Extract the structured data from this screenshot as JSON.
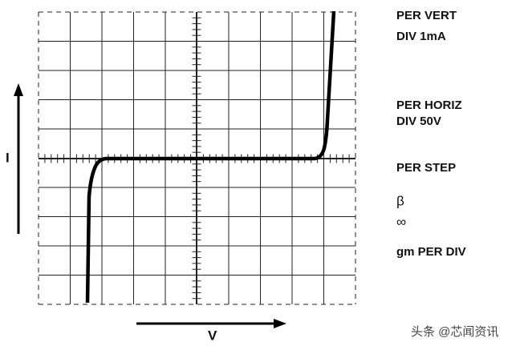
{
  "panel": {
    "labels": [
      "PER VERT",
      "DIV 1mA",
      "PER HORIZ",
      "DIV 50V",
      "PER STEP",
      "β",
      "∞",
      "gm PER DIV"
    ]
  },
  "axes": {
    "vertical": "I",
    "horizontal": "V"
  },
  "watermark": "头条 @芯闻资讯"
}
